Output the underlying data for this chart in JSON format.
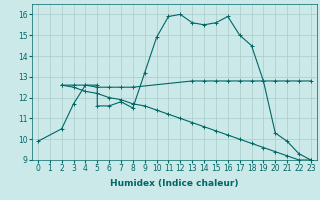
{
  "background_color": "#cce9e9",
  "grid_color": "#aacccc",
  "line_color": "#006666",
  "series1_x": [
    0,
    2,
    3,
    4,
    5,
    5,
    6,
    7,
    8,
    9,
    10,
    11,
    12,
    13,
    14,
    15,
    16,
    17,
    18,
    19,
    20,
    21,
    22,
    23
  ],
  "series1_y": [
    9.9,
    10.5,
    11.7,
    12.6,
    12.6,
    11.6,
    11.6,
    11.8,
    11.5,
    13.2,
    14.9,
    15.9,
    16.0,
    15.6,
    15.5,
    15.6,
    15.9,
    15.0,
    14.5,
    12.8,
    10.3,
    9.9,
    9.3,
    9.0
  ],
  "series2_x": [
    2,
    3,
    4,
    5,
    6,
    7,
    8,
    13,
    14,
    15,
    16,
    17,
    18,
    19,
    20,
    21,
    22,
    23
  ],
  "series2_y": [
    12.6,
    12.6,
    12.6,
    12.5,
    12.5,
    12.5,
    12.5,
    12.8,
    12.8,
    12.8,
    12.8,
    12.8,
    12.8,
    12.8,
    12.8,
    12.8,
    12.8,
    12.8
  ],
  "series3_x": [
    2,
    3,
    4,
    5,
    6,
    7,
    8,
    9,
    10,
    11,
    12,
    13,
    14,
    15,
    16,
    17,
    18,
    19,
    20,
    21,
    22,
    23
  ],
  "series3_y": [
    12.6,
    12.5,
    12.3,
    12.2,
    12.0,
    11.9,
    11.7,
    11.6,
    11.4,
    11.2,
    11.0,
    10.8,
    10.6,
    10.4,
    10.2,
    10.0,
    9.8,
    9.6,
    9.4,
    9.2,
    9.0,
    9.0
  ],
  "xlabel": "Humidex (Indice chaleur)",
  "xlim": [
    0,
    23
  ],
  "ylim": [
    9,
    16.5
  ],
  "xticks": [
    0,
    1,
    2,
    3,
    4,
    5,
    6,
    7,
    8,
    9,
    10,
    11,
    12,
    13,
    14,
    15,
    16,
    17,
    18,
    19,
    20,
    21,
    22,
    23
  ],
  "yticks": [
    9,
    10,
    11,
    12,
    13,
    14,
    15,
    16
  ],
  "xlabel_fontsize": 6.5,
  "tick_fontsize": 5.5
}
